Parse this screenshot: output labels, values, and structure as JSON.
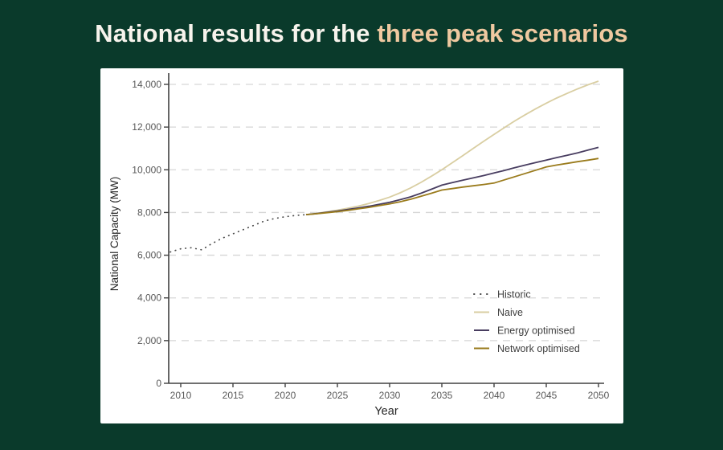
{
  "header": {
    "title_primary": "National results for the ",
    "title_accent": "three peak scenarios"
  },
  "colors": {
    "background": "#0A3A2B",
    "title_primary": "#F7F3EC",
    "title_accent": "#EFC8A0",
    "card_background": "#FFFFFF",
    "axis": "#404040",
    "tick_label": "#595959",
    "axis_title": "#262626",
    "legend_label": "#3F3F3F",
    "gridline": "#D6D6D6",
    "historic": "#4A4A4A",
    "naive": "#D9CEA2",
    "energy_optimised": "#483D60",
    "network_optimised": "#9A7B1C"
  },
  "chart_data": {
    "type": "line",
    "title": "",
    "xlabel": "Year",
    "ylabel": "National Capacity (MW)",
    "x_ticks": [
      2010,
      2015,
      2020,
      2025,
      2030,
      2035,
      2040,
      2045,
      2050
    ],
    "y_ticks": [
      0,
      2000,
      4000,
      6000,
      8000,
      10000,
      12000,
      14000
    ],
    "xlim": [
      2008.8,
      2050.6
    ],
    "ylim": [
      0,
      14600
    ],
    "grid": "horizontal-dashed",
    "legend_position": "inside-bottom-right",
    "legend": [
      "Historic",
      "Naive",
      "Energy optimised",
      "Network optimised"
    ],
    "series": [
      {
        "name": "Historic",
        "line_style": "dotted",
        "color_key": "historic",
        "years": [
          2009,
          2010,
          2011,
          2012,
          2013,
          2014,
          2015,
          2016,
          2017,
          2018,
          2019,
          2020,
          2021,
          2022
        ],
        "values": [
          6150,
          6300,
          6350,
          6250,
          6550,
          6800,
          7000,
          7200,
          7400,
          7600,
          7720,
          7800,
          7860,
          7900
        ]
      },
      {
        "name": "Naive",
        "line_style": "solid",
        "color_key": "naive",
        "years": [
          2022,
          2023,
          2024,
          2025,
          2026,
          2027,
          2028,
          2029,
          2030,
          2031,
          2032,
          2033,
          2034,
          2035,
          2036,
          2037,
          2038,
          2039,
          2040,
          2041,
          2042,
          2043,
          2044,
          2045,
          2046,
          2047,
          2048,
          2049,
          2050
        ],
        "values": [
          7900,
          7960,
          8030,
          8110,
          8200,
          8300,
          8420,
          8560,
          8720,
          8920,
          9150,
          9410,
          9700,
          10000,
          10330,
          10660,
          11000,
          11330,
          11660,
          11980,
          12290,
          12580,
          12860,
          13120,
          13360,
          13580,
          13790,
          13980,
          14150
        ]
      },
      {
        "name": "Energy optimised",
        "line_style": "solid",
        "color_key": "energy_optimised",
        "years": [
          2022,
          2023,
          2024,
          2025,
          2026,
          2027,
          2028,
          2029,
          2030,
          2031,
          2032,
          2033,
          2034,
          2035,
          2036,
          2037,
          2038,
          2039,
          2040,
          2041,
          2042,
          2043,
          2044,
          2045,
          2046,
          2047,
          2048,
          2049,
          2050
        ],
        "values": [
          7900,
          7950,
          8010,
          8070,
          8140,
          8210,
          8290,
          8380,
          8480,
          8600,
          8730,
          8900,
          9090,
          9280,
          9400,
          9510,
          9620,
          9730,
          9850,
          9970,
          10100,
          10220,
          10340,
          10450,
          10570,
          10680,
          10790,
          10920,
          11050
        ]
      },
      {
        "name": "Network optimised",
        "line_style": "solid",
        "color_key": "network_optimised",
        "years": [
          2022,
          2023,
          2024,
          2025,
          2026,
          2027,
          2028,
          2029,
          2030,
          2031,
          2032,
          2033,
          2034,
          2035,
          2036,
          2037,
          2038,
          2039,
          2040,
          2041,
          2042,
          2043,
          2044,
          2045,
          2046,
          2047,
          2048,
          2049,
          2050
        ],
        "values": [
          7900,
          7940,
          7990,
          8040,
          8100,
          8170,
          8240,
          8320,
          8400,
          8500,
          8620,
          8760,
          8900,
          9050,
          9120,
          9190,
          9250,
          9310,
          9380,
          9530,
          9680,
          9830,
          9980,
          10130,
          10220,
          10300,
          10380,
          10450,
          10530
        ]
      }
    ]
  }
}
